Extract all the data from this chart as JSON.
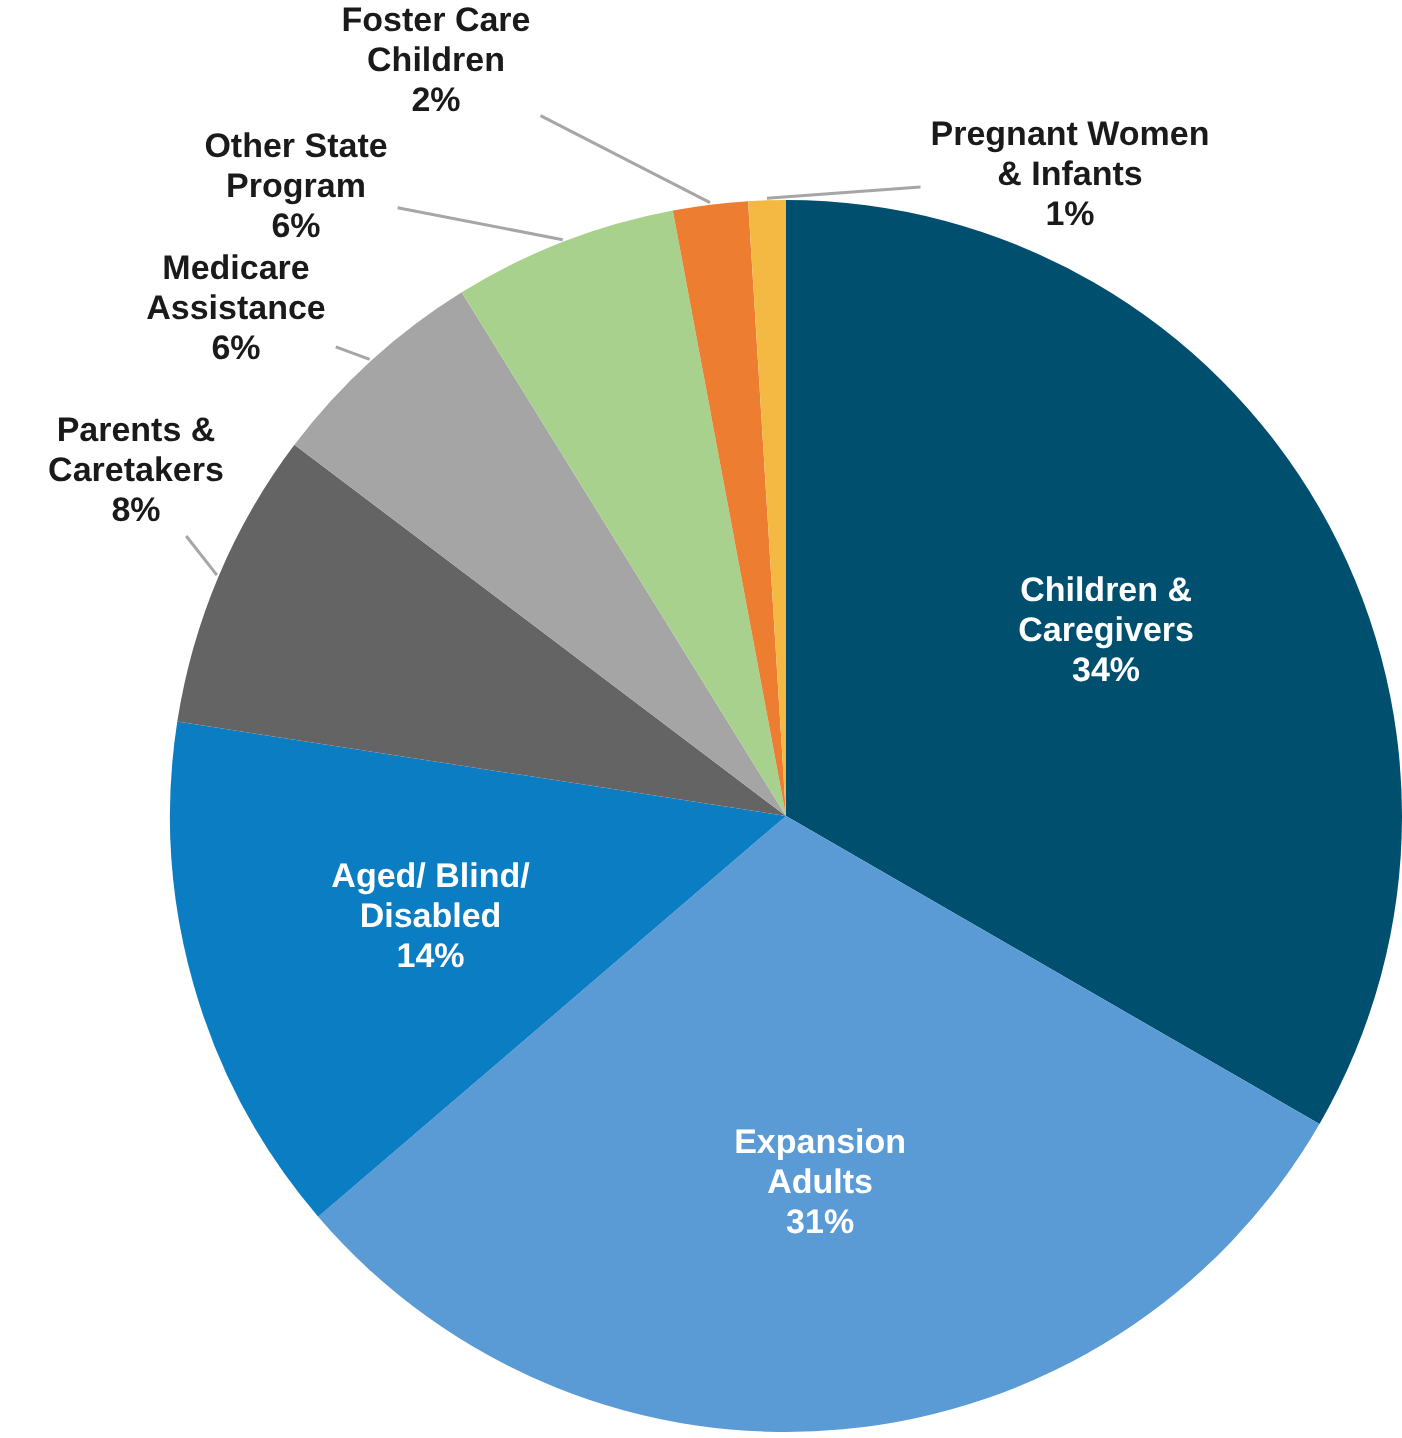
{
  "chart_data": {
    "type": "pie",
    "categories": [
      "Children & Caregivers",
      "Expansion Adults",
      "Aged/ Blind/ Disabled",
      "Parents & Caretakers",
      "Medicare Assistance",
      "Other State Program",
      "Foster Care Children",
      "Pregnant Women & Infants"
    ],
    "values": [
      34,
      31,
      14,
      8,
      6,
      6,
      2,
      1
    ],
    "value_labels": [
      "34%",
      "31%",
      "14%",
      "8%",
      "6%",
      "6%",
      "2%",
      "1%"
    ],
    "colors": [
      "#004f6e",
      "#5b9bd5",
      "#0b7dc2",
      "#646464",
      "#a5a5a5",
      "#a9d18e",
      "#ed7d31",
      "#f4b942"
    ],
    "legend": false
  }
}
